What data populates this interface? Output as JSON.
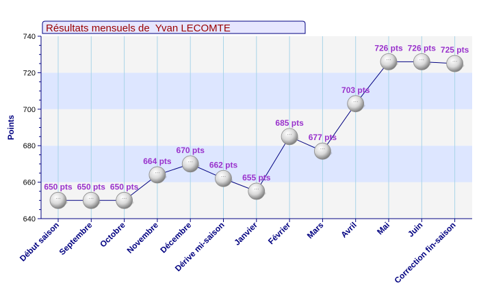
{
  "chart_data": {
    "type": "line",
    "title": "Résultats mensuels de  Yvan LECOMTE",
    "ylabel": "Points",
    "xlabel": "",
    "ylim": [
      640,
      740
    ],
    "yticks": [
      640,
      660,
      680,
      700,
      720,
      740
    ],
    "grid": true,
    "categories": [
      "Début saison",
      "Septembre",
      "Octobre",
      "Novembre",
      "Décembre",
      "Dérive mi-saison",
      "Janvier",
      "Février",
      "Mars",
      "Avril",
      "Mai",
      "Juin",
      "Correction fin-saison"
    ],
    "series": [
      {
        "values": [
          650,
          650,
          650,
          664,
          670,
          662,
          655,
          685,
          677,
          703,
          726,
          726,
          725
        ],
        "labels": [
          "650 pts",
          "650 pts",
          "650 pts",
          "664 pts",
          "670 pts",
          "662 pts",
          "655 pts",
          "685 pts",
          "677 pts",
          "703 pts",
          "726 pts",
          "726 pts",
          "725 pts"
        ]
      }
    ],
    "colors": {
      "title_text": "#990000",
      "title_bg": "#e6e6ff",
      "axis": "#000080",
      "data_label": "#9932cc",
      "band_light": "#f4f4f4",
      "band_blue": "#dde6ff",
      "gridline": "#a8d4e8",
      "line": "#000080"
    }
  }
}
